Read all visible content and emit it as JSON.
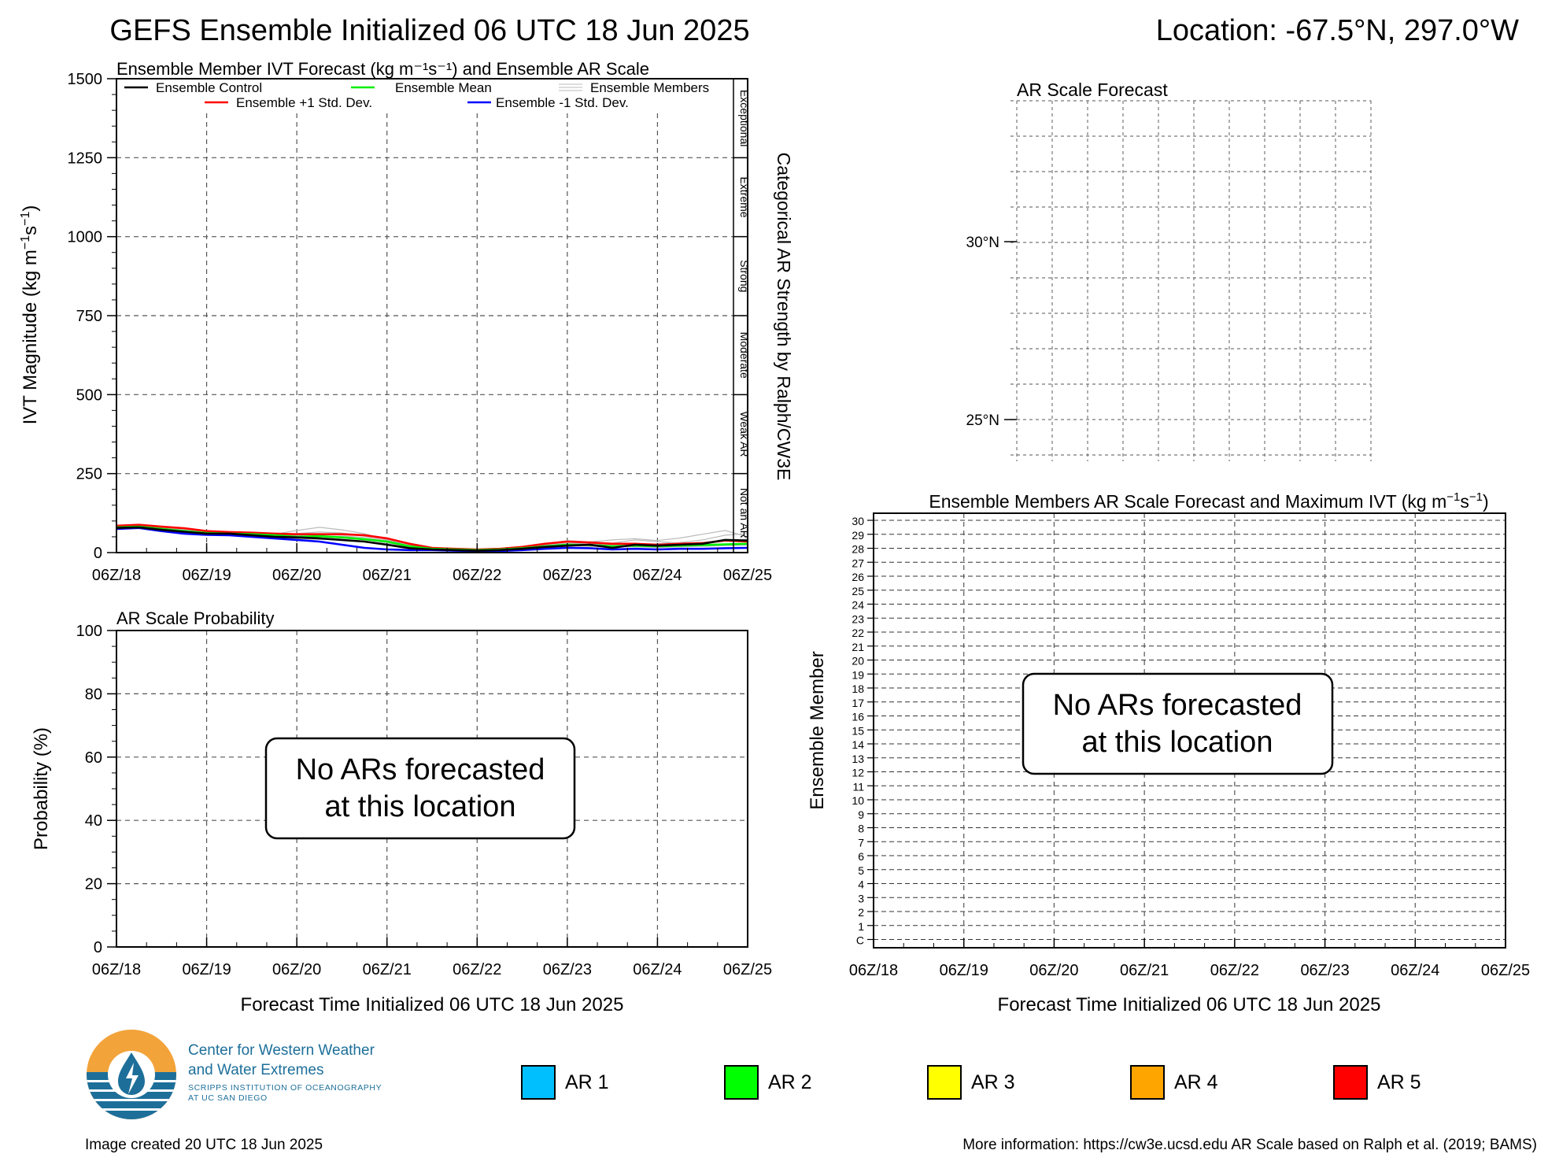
{
  "header": {
    "title": "GEFS Ensemble Initialized 06 UTC 18 Jun 2025",
    "location": "Location: -67.5°N, 297.0°W"
  },
  "x_tick_labels": [
    "06Z/18",
    "06Z/19",
    "06Z/20",
    "06Z/21",
    "06Z/22",
    "06Z/23",
    "06Z/24",
    "06Z/25"
  ],
  "no_ar_message": [
    "No ARs forecasted",
    "at this location"
  ],
  "ar_legend": [
    {
      "label": "AR 1",
      "color": "#00bfff"
    },
    {
      "label": "AR 2",
      "color": "#00ff00"
    },
    {
      "label": "AR 3",
      "color": "#ffff00"
    },
    {
      "label": "AR 4",
      "color": "#ffa500"
    },
    {
      "label": "AR 5",
      "color": "#ff0000"
    }
  ],
  "logo": {
    "line1": "Center for Western Weather",
    "line2": "and Water Extremes",
    "line3": "SCRIPPS INSTITUTION OF OCEANOGRAPHY",
    "line4": "AT UC SAN DIEGO"
  },
  "footer": {
    "created": "Image created 20 UTC 18 Jun 2025",
    "info": "More information: https://cw3e.ucsd.edu AR Scale based on Ralph et al. (2019; BAMS)"
  },
  "chart_data": [
    {
      "id": "ivt",
      "type": "line",
      "title": "Ensemble Member IVT Forecast (kg m⁻¹s⁻¹) and Ensemble AR Scale",
      "ylabel": "IVT Magnitude (kg m⁻¹s⁻¹)",
      "right_label": "Categorical AR Strength by Ralph/CW3E",
      "categories_right": [
        "Not an AR",
        "Weak AR",
        "Moderate",
        "Strong",
        "Extreme",
        "Exceptional"
      ],
      "ylim": [
        0,
        1500
      ],
      "yticks": [
        0,
        250,
        500,
        750,
        1000,
        1250,
        1500
      ],
      "xlim": [
        0,
        168
      ],
      "legend_position": "top",
      "legend": [
        {
          "name": "Ensemble Control",
          "color": "#000000"
        },
        {
          "name": "Ensemble Mean",
          "color": "#00ee00"
        },
        {
          "name": "Ensemble Members",
          "color": "#bbbbbb"
        },
        {
          "name": "Ensemble +1 Std. Dev.",
          "color": "#ff0000"
        },
        {
          "name": "Ensemble -1 Std. Dev.",
          "color": "#0000ff"
        }
      ],
      "x": [
        0,
        6,
        12,
        18,
        24,
        30,
        36,
        42,
        48,
        54,
        60,
        66,
        72,
        78,
        84,
        90,
        96,
        102,
        108,
        114,
        120,
        126,
        132,
        138,
        144,
        150,
        156,
        162,
        168
      ],
      "series": [
        {
          "name": "Ensemble +1 Std. Dev.",
          "color": "#ff0000",
          "values": [
            85,
            88,
            82,
            77,
            68,
            65,
            63,
            60,
            58,
            58,
            58,
            55,
            45,
            28,
            15,
            12,
            10,
            12,
            18,
            28,
            35,
            32,
            28,
            28,
            25,
            28,
            30,
            38,
            35
          ]
        },
        {
          "name": "Ensemble Mean",
          "color": "#00ee00",
          "values": [
            80,
            82,
            75,
            68,
            62,
            60,
            58,
            55,
            50,
            52,
            48,
            42,
            35,
            20,
            12,
            10,
            8,
            10,
            14,
            20,
            25,
            24,
            20,
            22,
            20,
            22,
            24,
            26,
            28
          ]
        },
        {
          "name": "Ensemble -1 Std. Dev.",
          "color": "#0000ff",
          "values": [
            75,
            78,
            68,
            60,
            56,
            55,
            50,
            45,
            40,
            35,
            25,
            15,
            10,
            8,
            8,
            6,
            5,
            5,
            8,
            12,
            15,
            14,
            10,
            12,
            10,
            12,
            12,
            14,
            15
          ]
        },
        {
          "name": "Ensemble Control",
          "color": "#000000",
          "values": [
            78,
            80,
            72,
            66,
            60,
            60,
            55,
            50,
            48,
            45,
            40,
            35,
            25,
            14,
            10,
            8,
            6,
            8,
            12,
            18,
            22,
            25,
            15,
            25,
            22,
            25,
            28,
            40,
            38
          ]
        }
      ],
      "member_series": [
        [
          80,
          85,
          78,
          70,
          64,
          62,
          60,
          58,
          70,
          80,
          72,
          60,
          40,
          22,
          14,
          10,
          8,
          10,
          16,
          28,
          38,
          34,
          30,
          40,
          35,
          30,
          32,
          38,
          42
        ],
        [
          82,
          84,
          76,
          68,
          62,
          60,
          58,
          56,
          60,
          65,
          62,
          55,
          45,
          26,
          14,
          12,
          10,
          12,
          18,
          24,
          30,
          28,
          24,
          26,
          28,
          32,
          40,
          55,
          60
        ],
        [
          78,
          80,
          72,
          66,
          60,
          58,
          55,
          52,
          48,
          50,
          52,
          48,
          38,
          20,
          10,
          8,
          6,
          9,
          12,
          18,
          22,
          20,
          18,
          20,
          18,
          20,
          22,
          24,
          26
        ],
        [
          84,
          86,
          80,
          72,
          66,
          64,
          62,
          58,
          55,
          58,
          60,
          52,
          42,
          24,
          12,
          10,
          8,
          10,
          14,
          22,
          28,
          34,
          40,
          44,
          38,
          46,
          58,
          70,
          50
        ],
        [
          76,
          78,
          70,
          64,
          58,
          56,
          52,
          48,
          44,
          42,
          40,
          36,
          30,
          16,
          10,
          7,
          5,
          7,
          10,
          16,
          20,
          22,
          18,
          18,
          16,
          18,
          20,
          22,
          24
        ]
      ]
    },
    {
      "id": "probability",
      "type": "line",
      "title": "AR Scale Probability",
      "xlabel": "Forecast Time Initialized 06 UTC 18 Jun 2025",
      "ylabel": "Probability (%)",
      "ylim": [
        0,
        100
      ],
      "yticks": [
        0,
        20,
        40,
        60,
        80,
        100
      ],
      "xlim": [
        0,
        168
      ],
      "series": []
    },
    {
      "id": "ar_scale_map",
      "type": "map",
      "title": "AR Scale Forecast",
      "lat_labels": [
        {
          "label": "30°N",
          "lat": 30
        },
        {
          "label": "25°N",
          "lat": 25
        }
      ],
      "lat_range": [
        24,
        34
      ],
      "grid": true,
      "series": []
    },
    {
      "id": "members",
      "type": "heatmap",
      "title": "Ensemble Members AR Scale Forecast and Maximum IVT (kg m⁻¹s⁻¹)",
      "xlabel": "Forecast Time Initialized 06 UTC 18 Jun 2025",
      "ylabel": "Ensemble Member",
      "members": [
        "C",
        "1",
        "2",
        "3",
        "4",
        "5",
        "6",
        "7",
        "8",
        "9",
        "10",
        "11",
        "12",
        "13",
        "14",
        "15",
        "16",
        "17",
        "18",
        "19",
        "20",
        "21",
        "22",
        "23",
        "24",
        "25",
        "26",
        "27",
        "28",
        "29",
        "30"
      ],
      "xlim": [
        0,
        168
      ],
      "values": []
    }
  ]
}
